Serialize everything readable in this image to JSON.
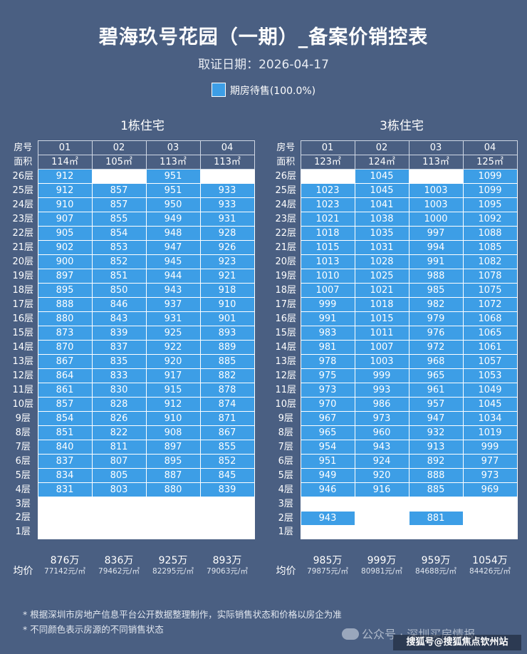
{
  "title": "碧海玖号花园（一期）_备案价销控表",
  "subtitle": "取证日期：2026-04-17",
  "legend": {
    "label": "期房待售(100.0%)",
    "color": "#3d9ee6"
  },
  "row_labels": {
    "room": "房号",
    "area": "面积",
    "avg": "均价"
  },
  "buildings": [
    {
      "name": "1栋住宅",
      "units": [
        "01",
        "02",
        "03",
        "04"
      ],
      "areas": [
        "114㎡",
        "105㎡",
        "113㎡",
        "113㎡"
      ],
      "floors": [
        {
          "label": "26层",
          "cells": [
            "912",
            "",
            "951",
            ""
          ],
          "status": [
            "b",
            "w",
            "b",
            "w"
          ]
        },
        {
          "label": "25层",
          "cells": [
            "912",
            "857",
            "951",
            "933"
          ],
          "status": [
            "b",
            "b",
            "b",
            "b"
          ]
        },
        {
          "label": "24层",
          "cells": [
            "910",
            "857",
            "950",
            "933"
          ],
          "status": [
            "b",
            "b",
            "b",
            "b"
          ]
        },
        {
          "label": "23层",
          "cells": [
            "907",
            "855",
            "949",
            "931"
          ],
          "status": [
            "b",
            "b",
            "b",
            "b"
          ]
        },
        {
          "label": "22层",
          "cells": [
            "905",
            "854",
            "948",
            "928"
          ],
          "status": [
            "b",
            "b",
            "b",
            "b"
          ]
        },
        {
          "label": "21层",
          "cells": [
            "902",
            "853",
            "947",
            "926"
          ],
          "status": [
            "b",
            "b",
            "b",
            "b"
          ]
        },
        {
          "label": "20层",
          "cells": [
            "900",
            "852",
            "945",
            "923"
          ],
          "status": [
            "b",
            "b",
            "b",
            "b"
          ]
        },
        {
          "label": "19层",
          "cells": [
            "897",
            "851",
            "944",
            "921"
          ],
          "status": [
            "b",
            "b",
            "b",
            "b"
          ]
        },
        {
          "label": "18层",
          "cells": [
            "895",
            "850",
            "943",
            "918"
          ],
          "status": [
            "b",
            "b",
            "b",
            "b"
          ]
        },
        {
          "label": "17层",
          "cells": [
            "888",
            "846",
            "937",
            "910"
          ],
          "status": [
            "b",
            "b",
            "b",
            "b"
          ]
        },
        {
          "label": "16层",
          "cells": [
            "880",
            "843",
            "931",
            "901"
          ],
          "status": [
            "b",
            "b",
            "b",
            "b"
          ]
        },
        {
          "label": "15层",
          "cells": [
            "873",
            "839",
            "925",
            "893"
          ],
          "status": [
            "b",
            "b",
            "b",
            "b"
          ]
        },
        {
          "label": "14层",
          "cells": [
            "870",
            "837",
            "922",
            "889"
          ],
          "status": [
            "b",
            "b",
            "b",
            "b"
          ]
        },
        {
          "label": "13层",
          "cells": [
            "867",
            "835",
            "920",
            "885"
          ],
          "status": [
            "b",
            "b",
            "b",
            "b"
          ]
        },
        {
          "label": "12层",
          "cells": [
            "864",
            "833",
            "917",
            "882"
          ],
          "status": [
            "b",
            "b",
            "b",
            "b"
          ]
        },
        {
          "label": "11层",
          "cells": [
            "861",
            "830",
            "915",
            "878"
          ],
          "status": [
            "b",
            "b",
            "b",
            "b"
          ]
        },
        {
          "label": "10层",
          "cells": [
            "857",
            "828",
            "912",
            "874"
          ],
          "status": [
            "b",
            "b",
            "b",
            "b"
          ]
        },
        {
          "label": "9层",
          "cells": [
            "854",
            "826",
            "910",
            "871"
          ],
          "status": [
            "b",
            "b",
            "b",
            "b"
          ]
        },
        {
          "label": "8层",
          "cells": [
            "851",
            "822",
            "908",
            "867"
          ],
          "status": [
            "b",
            "b",
            "b",
            "b"
          ]
        },
        {
          "label": "7层",
          "cells": [
            "840",
            "811",
            "897",
            "855"
          ],
          "status": [
            "b",
            "b",
            "b",
            "b"
          ]
        },
        {
          "label": "6层",
          "cells": [
            "837",
            "807",
            "895",
            "852"
          ],
          "status": [
            "b",
            "b",
            "b",
            "b"
          ]
        },
        {
          "label": "5层",
          "cells": [
            "834",
            "805",
            "887",
            "845"
          ],
          "status": [
            "b",
            "b",
            "b",
            "b"
          ]
        },
        {
          "label": "4层",
          "cells": [
            "831",
            "803",
            "880",
            "839"
          ],
          "status": [
            "b",
            "b",
            "b",
            "b"
          ]
        },
        {
          "label": "3层",
          "cells": [
            "",
            "",
            "",
            ""
          ],
          "status": [
            "w",
            "w",
            "w",
            "w"
          ]
        },
        {
          "label": "2层",
          "cells": [
            "",
            "",
            "",
            ""
          ],
          "status": [
            "w",
            "w",
            "w",
            "w"
          ]
        },
        {
          "label": "1层",
          "cells": [
            "",
            "",
            "",
            ""
          ],
          "status": [
            "w",
            "w",
            "w",
            "w"
          ]
        }
      ],
      "totals": [
        "876万",
        "836万",
        "925万",
        "893万"
      ],
      "unit_prices": [
        "77142元/㎡",
        "79462元/㎡",
        "82295元/㎡",
        "79063元/㎡"
      ]
    },
    {
      "name": "3栋住宅",
      "units": [
        "01",
        "02",
        "03",
        "04"
      ],
      "areas": [
        "123㎡",
        "124㎡",
        "113㎡",
        "125㎡"
      ],
      "floors": [
        {
          "label": "26层",
          "cells": [
            "",
            "1045",
            "",
            "1099"
          ],
          "status": [
            "w",
            "b",
            "w",
            "b"
          ]
        },
        {
          "label": "25层",
          "cells": [
            "1023",
            "1045",
            "1003",
            "1099"
          ],
          "status": [
            "b",
            "b",
            "b",
            "b"
          ]
        },
        {
          "label": "24层",
          "cells": [
            "1023",
            "1041",
            "1003",
            "1095"
          ],
          "status": [
            "b",
            "b",
            "b",
            "b"
          ]
        },
        {
          "label": "23层",
          "cells": [
            "1021",
            "1038",
            "1000",
            "1092"
          ],
          "status": [
            "b",
            "b",
            "b",
            "b"
          ]
        },
        {
          "label": "22层",
          "cells": [
            "1018",
            "1035",
            "997",
            "1088"
          ],
          "status": [
            "b",
            "b",
            "b",
            "b"
          ]
        },
        {
          "label": "21层",
          "cells": [
            "1015",
            "1031",
            "994",
            "1085"
          ],
          "status": [
            "b",
            "b",
            "b",
            "b"
          ]
        },
        {
          "label": "20层",
          "cells": [
            "1013",
            "1028",
            "991",
            "1082"
          ],
          "status": [
            "b",
            "b",
            "b",
            "b"
          ]
        },
        {
          "label": "19层",
          "cells": [
            "1010",
            "1025",
            "988",
            "1078"
          ],
          "status": [
            "b",
            "b",
            "b",
            "b"
          ]
        },
        {
          "label": "18层",
          "cells": [
            "1007",
            "1021",
            "985",
            "1075"
          ],
          "status": [
            "b",
            "b",
            "b",
            "b"
          ]
        },
        {
          "label": "17层",
          "cells": [
            "999",
            "1018",
            "982",
            "1072"
          ],
          "status": [
            "b",
            "b",
            "b",
            "b"
          ]
        },
        {
          "label": "16层",
          "cells": [
            "991",
            "1015",
            "979",
            "1068"
          ],
          "status": [
            "b",
            "b",
            "b",
            "b"
          ]
        },
        {
          "label": "15层",
          "cells": [
            "983",
            "1011",
            "976",
            "1065"
          ],
          "status": [
            "b",
            "b",
            "b",
            "b"
          ]
        },
        {
          "label": "14层",
          "cells": [
            "981",
            "1007",
            "972",
            "1061"
          ],
          "status": [
            "b",
            "b",
            "b",
            "b"
          ]
        },
        {
          "label": "13层",
          "cells": [
            "978",
            "1003",
            "968",
            "1057"
          ],
          "status": [
            "b",
            "b",
            "b",
            "b"
          ]
        },
        {
          "label": "12层",
          "cells": [
            "975",
            "999",
            "965",
            "1053"
          ],
          "status": [
            "b",
            "b",
            "b",
            "b"
          ]
        },
        {
          "label": "11层",
          "cells": [
            "973",
            "993",
            "961",
            "1049"
          ],
          "status": [
            "b",
            "b",
            "b",
            "b"
          ]
        },
        {
          "label": "10层",
          "cells": [
            "970",
            "986",
            "957",
            "1045"
          ],
          "status": [
            "b",
            "b",
            "b",
            "b"
          ]
        },
        {
          "label": "9层",
          "cells": [
            "967",
            "973",
            "947",
            "1034"
          ],
          "status": [
            "b",
            "b",
            "b",
            "b"
          ]
        },
        {
          "label": "8层",
          "cells": [
            "965",
            "960",
            "932",
            "1019"
          ],
          "status": [
            "b",
            "b",
            "b",
            "b"
          ]
        },
        {
          "label": "7层",
          "cells": [
            "954",
            "943",
            "913",
            "999"
          ],
          "status": [
            "b",
            "b",
            "b",
            "b"
          ]
        },
        {
          "label": "6层",
          "cells": [
            "951",
            "924",
            "892",
            "977"
          ],
          "status": [
            "b",
            "b",
            "b",
            "b"
          ]
        },
        {
          "label": "5层",
          "cells": [
            "949",
            "920",
            "888",
            "973"
          ],
          "status": [
            "b",
            "b",
            "b",
            "b"
          ]
        },
        {
          "label": "4层",
          "cells": [
            "946",
            "916",
            "885",
            "969"
          ],
          "status": [
            "b",
            "b",
            "b",
            "b"
          ]
        },
        {
          "label": "3层",
          "cells": [
            "",
            "",
            "",
            ""
          ],
          "status": [
            "w",
            "w",
            "w",
            "w"
          ]
        },
        {
          "label": "2层",
          "cells": [
            "943",
            "",
            "881",
            ""
          ],
          "status": [
            "b",
            "w",
            "b",
            "w"
          ]
        },
        {
          "label": "1层",
          "cells": [
            "",
            "",
            "",
            ""
          ],
          "status": [
            "w",
            "w",
            "w",
            "w"
          ]
        }
      ],
      "totals": [
        "985万",
        "999万",
        "959万",
        "1054万"
      ],
      "unit_prices": [
        "79875元/㎡",
        "80981元/㎡",
        "84688元/㎡",
        "84426元/㎡"
      ]
    }
  ],
  "notes": [
    "* 根据深圳市房地产信息平台公开数据整理制作，实际销售状态和价格以房企为准",
    "* 不同颜色表示房源的不同销售状态"
  ],
  "watermark_wechat": "公众号 · 深圳买房情报",
  "watermark_sohu": "搜狐号@搜狐焦点钦州站"
}
